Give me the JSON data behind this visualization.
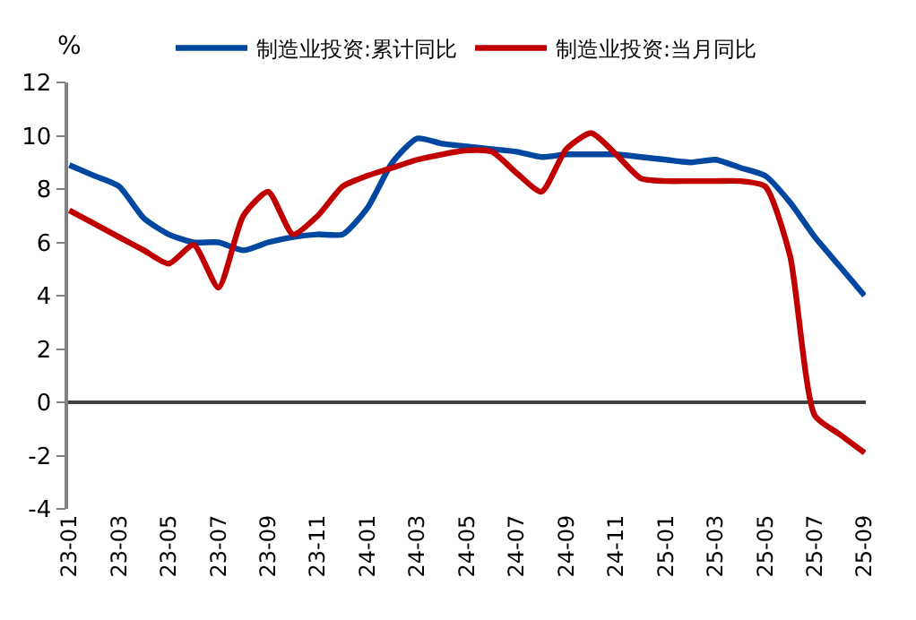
{
  "chart_data": {
    "type": "line",
    "ylabel": "%",
    "categories": [
      "23-01",
      null,
      "23-03",
      null,
      "23-05",
      null,
      "23-07",
      null,
      "23-09",
      null,
      "23-11",
      null,
      "24-01",
      null,
      "24-03",
      null,
      "24-05",
      null,
      "24-07",
      null,
      "24-09",
      null,
      "24-11",
      null,
      "25-01",
      null,
      "25-03",
      null,
      "25-05",
      null,
      "25-07",
      null,
      "25-09"
    ],
    "series": [
      {
        "name": "制造业投资:累计同比",
        "color": "#0047a0",
        "values": [
          8.9,
          8.5,
          8.1,
          6.9,
          6.3,
          6.0,
          6.0,
          5.7,
          6.0,
          6.2,
          6.3,
          6.3,
          7.3,
          9.0,
          9.9,
          9.7,
          9.6,
          9.5,
          9.4,
          9.2,
          9.3,
          9.3,
          9.3,
          9.2,
          9.1,
          9.0,
          9.1,
          8.8,
          8.5,
          7.5,
          6.2,
          5.1,
          4.0
        ]
      },
      {
        "name": "制造业投资:当月同比",
        "color": "#c00000",
        "values": [
          7.2,
          6.7,
          6.2,
          5.7,
          5.2,
          5.9,
          4.3,
          7.0,
          7.9,
          6.3,
          7.0,
          8.1,
          8.5,
          8.8,
          9.1,
          9.3,
          9.45,
          9.4,
          8.6,
          7.9,
          9.5,
          10.1,
          9.3,
          8.4,
          8.3,
          8.3,
          8.3,
          8.3,
          8.1,
          5.5,
          -0.5,
          -1.2,
          -1.9
        ]
      }
    ],
    "ylim": [
      -4,
      12
    ],
    "yticks": [
      -4,
      -2,
      0,
      2,
      4,
      6,
      8,
      10,
      12
    ],
    "legend": "top",
    "marker": "none",
    "line_style": "solid"
  }
}
